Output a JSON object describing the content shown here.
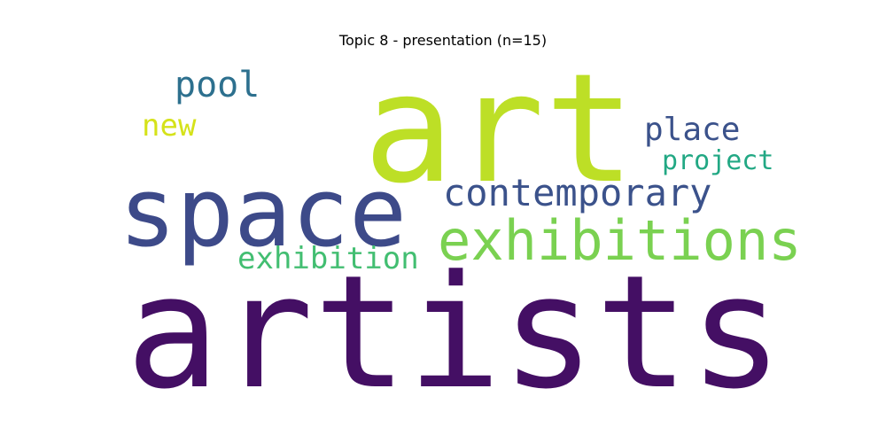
{
  "chart_data": {
    "type": "wordcloud",
    "title": "Topic 8 - presentation (n=15)",
    "words": [
      {
        "text": "artists",
        "weight": 1.0,
        "color": "#440f64"
      },
      {
        "text": "art",
        "weight": 0.85,
        "color": "#bddf26"
      },
      {
        "text": "space",
        "weight": 0.72,
        "color": "#3d4a89"
      },
      {
        "text": "exhibitions",
        "weight": 0.4,
        "color": "#7ad151"
      },
      {
        "text": "contemporary",
        "weight": 0.3,
        "color": "#3b528b"
      },
      {
        "text": "exhibition",
        "weight": 0.27,
        "color": "#42be71"
      },
      {
        "text": "pool",
        "weight": 0.3,
        "color": "#2d708e"
      },
      {
        "text": "place",
        "weight": 0.28,
        "color": "#3b528b"
      },
      {
        "text": "project",
        "weight": 0.22,
        "color": "#22a884"
      },
      {
        "text": "new",
        "weight": 0.22,
        "color": "#d5e21a"
      }
    ]
  }
}
